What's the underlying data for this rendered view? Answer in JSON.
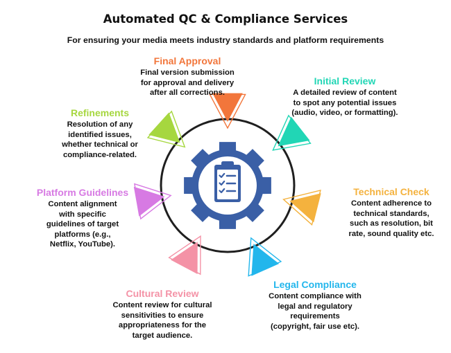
{
  "title": "Automated QC & Compliance Services",
  "subtitle": "For ensuring your media meets industry standards and platform requirements",
  "colors": {
    "final_approval": "#f2763b",
    "initial_review": "#21d6b5",
    "technical_check": "#f4b23e",
    "legal_compliance": "#22b6ec",
    "cultural_review": "#f492a6",
    "platform_guidelines": "#d77ae3",
    "refinements": "#a6d73f",
    "gear": "#3a5fa6",
    "circle_border": "#1f1f1f"
  },
  "center_icon": "gear-clipboard-checklist-icon",
  "steps": [
    {
      "key": "final_approval",
      "title": "Final Approval",
      "desc": [
        "Final version submission",
        "for approval and delivery",
        "after all corrections."
      ]
    },
    {
      "key": "initial_review",
      "title": "Initial Review",
      "desc": [
        "A detailed review of  content",
        "to spot any potential issues",
        "(audio, video, or formatting)."
      ]
    },
    {
      "key": "technical_check",
      "title": "Technical Check",
      "desc": [
        "Content adherence to",
        "technical standards,",
        "such as resolution, bit",
        "rate, sound quality etc."
      ]
    },
    {
      "key": "legal_compliance",
      "title": "Legal Compliance",
      "desc": [
        "Content compliance with",
        "legal and regulatory",
        "requirements",
        "(copyright, fair use etc)."
      ]
    },
    {
      "key": "cultural_review",
      "title": "Cultural Review",
      "desc": [
        "Content review for cultural",
        "sensitivities to ensure",
        "appropriateness for the",
        "target audience."
      ]
    },
    {
      "key": "platform_guidelines",
      "title": "Platform Guidelines",
      "desc": [
        "Content alignment",
        "with specific",
        "guidelines of target",
        "platforms (e.g.,",
        "Netflix, YouTube)."
      ]
    },
    {
      "key": "refinements",
      "title": "Refinements",
      "desc": [
        "Resolution of any",
        "identified issues,",
        "whether technical or",
        "compliance-related."
      ]
    }
  ]
}
